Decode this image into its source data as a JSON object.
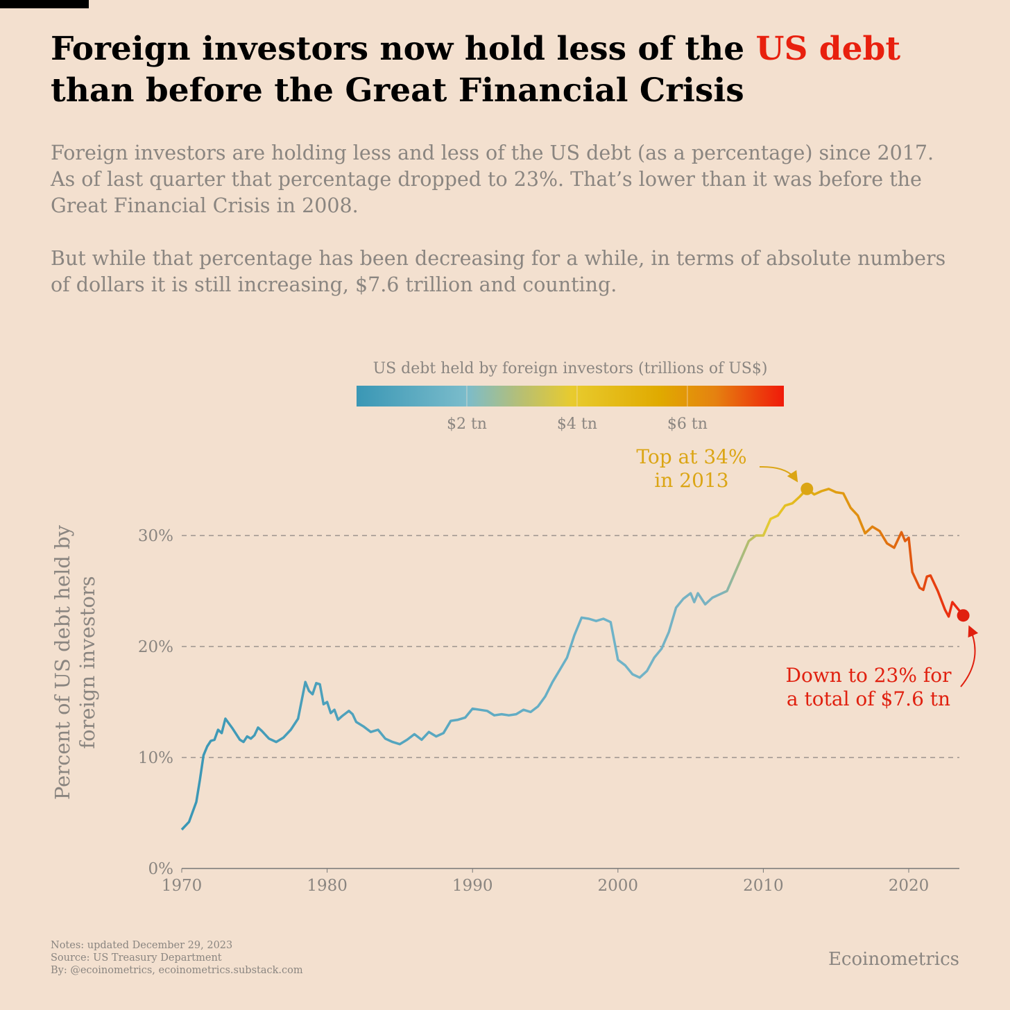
{
  "chart_data": {
    "type": "line",
    "title_parts": [
      "Foreign investors now hold less of the ",
      "US debt",
      "than before the Great Financial Crisis"
    ],
    "title_highlight_color": "#e8200e",
    "subtitle": [
      [
        "Foreign investors are holding less and less of the US debt (as a percentage) since 2017.",
        "As of last quarter that percentage dropped to 23%. That’s lower than it was before the",
        "Great Financial Crisis in 2008."
      ],
      [
        "But while that percentage has been decreasing for a while, in terms of absolute numbers",
        "of dollars it is still increasing, $7.6 trillion and counting."
      ]
    ],
    "colorbar": {
      "title": "US debt held by foreign investors (trillions of US$)",
      "lim": [
        0,
        7.75
      ],
      "ticks": [
        {
          "value": 2,
          "label": "$2 tn"
        },
        {
          "value": 4,
          "label": "$4 tn"
        },
        {
          "value": 6,
          "label": "$6 tn"
        }
      ],
      "stops": [
        {
          "value": 0,
          "color": "#3a97b5"
        },
        {
          "value": 2,
          "color": "#7bbccb"
        },
        {
          "value": 3,
          "color": "#b8bf72"
        },
        {
          "value": 3.9,
          "color": "#e8cb2e"
        },
        {
          "value": 5.5,
          "color": "#e0aa00"
        },
        {
          "value": 6.5,
          "color": "#e58210"
        },
        {
          "value": 7.75,
          "color": "#f01a0a"
        }
      ]
    },
    "ylabel": [
      "Percent of US debt held by",
      "foreign investors"
    ],
    "x": [
      1970,
      1970.5,
      1971,
      1971.25,
      1971.5,
      1971.75,
      1972,
      1972.25,
      1972.5,
      1972.75,
      1973,
      1973.5,
      1974,
      1974.25,
      1974.5,
      1974.75,
      1975,
      1975.25,
      1975.5,
      1976,
      1976.5,
      1977,
      1977.5,
      1978,
      1978.5,
      1978.75,
      1979,
      1979.25,
      1979.5,
      1979.75,
      1980,
      1980.25,
      1980.5,
      1980.75,
      1981,
      1981.5,
      1981.75,
      1982,
      1982.5,
      1983,
      1983.5,
      1984,
      1984.5,
      1985,
      1985.5,
      1986,
      1986.5,
      1987,
      1987.5,
      1988,
      1988.5,
      1989,
      1989.5,
      1990,
      1990.5,
      1991,
      1991.5,
      1992,
      1992.5,
      1993,
      1993.5,
      1994,
      1994.5,
      1995,
      1995.5,
      1996,
      1996.5,
      1997,
      1997.5,
      1998,
      1998.5,
      1999,
      1999.5,
      2000,
      2000.5,
      2001,
      2001.5,
      2002,
      2002.5,
      2003,
      2003.5,
      2004,
      2004.5,
      2005,
      2005.25,
      2005.5,
      2006,
      2006.5,
      2007,
      2007.5,
      2008,
      2008.5,
      2009,
      2009.5,
      2010,
      2010.5,
      2011,
      2011.5,
      2012,
      2012.5,
      2013,
      2013.5,
      2014,
      2014.5,
      2015,
      2015.5,
      2016,
      2016.5,
      2017,
      2017.5,
      2018,
      2018.5,
      2019,
      2019.5,
      2019.75,
      2020,
      2020.25,
      2020.75,
      2021,
      2021.25,
      2021.5,
      2022,
      2022.5,
      2022.75,
      2023,
      2023.5,
      2023.75
    ],
    "series": [
      {
        "values": [
          3.5,
          4.2,
          6,
          8,
          10.2,
          11,
          11.5,
          11.6,
          12.5,
          12.2,
          13.5,
          12.6,
          11.6,
          11.4,
          11.9,
          11.7,
          12,
          12.7,
          12.4,
          11.7,
          11.4,
          11.8,
          12.5,
          13.5,
          16.8,
          16,
          15.7,
          16.7,
          16.6,
          14.8,
          15,
          14,
          14.3,
          13.4,
          13.7,
          14.2,
          13.9,
          13.2,
          12.8,
          12.3,
          12.5,
          11.7,
          11.4,
          11.2,
          11.6,
          12.1,
          11.6,
          12.3,
          11.9,
          12.2,
          13.3,
          13.4,
          13.6,
          14.4,
          14.3,
          14.2,
          13.8,
          13.9,
          13.8,
          13.9,
          14.3,
          14.1,
          14.6,
          15.5,
          16.8,
          17.9,
          19,
          21,
          22.6,
          22.5,
          22.3,
          22.5,
          22.2,
          18.8,
          18.3,
          17.5,
          17.2,
          17.8,
          19,
          19.8,
          21.3,
          23.5,
          24.3,
          24.8,
          24,
          24.8,
          23.8,
          24.4,
          24.7,
          25,
          26.5,
          28,
          29.5,
          30,
          30,
          31.5,
          31.8,
          32.7,
          32.9,
          33.5,
          34.2,
          33.7,
          34,
          34.2,
          33.9,
          33.8,
          32.5,
          31.8,
          30.2,
          30.8,
          30.4,
          29.3,
          28.9,
          30.3,
          29.5,
          29.8,
          26.7,
          25.3,
          25.1,
          26.3,
          26.4,
          25,
          23.3,
          22.7,
          24,
          23.2,
          22.8
        ]
      }
    ],
    "line_gradient": [
      {
        "x": 1970,
        "color": "#3a97b5"
      },
      {
        "x": 2000,
        "color": "#6fb3c8"
      },
      {
        "x": 2007,
        "color": "#7ab2c0"
      },
      {
        "x": 2009,
        "color": "#b5bd6a"
      },
      {
        "x": 2010.5,
        "color": "#e8cb2e"
      },
      {
        "x": 2013,
        "color": "#e0b015"
      },
      {
        "x": 2017,
        "color": "#e08a10"
      },
      {
        "x": 2020,
        "color": "#e05a10"
      },
      {
        "x": 2023.75,
        "color": "#ee2010"
      }
    ],
    "xlim": [
      1970,
      2023.75
    ],
    "xticks": [
      1970,
      1980,
      1990,
      2000,
      2010,
      2020
    ],
    "ylim": [
      0,
      36
    ],
    "yticks": [
      {
        "value": 0,
        "label": "0%"
      },
      {
        "value": 10,
        "label": "10%"
      },
      {
        "value": 20,
        "label": "20%"
      },
      {
        "value": 30,
        "label": "30%"
      }
    ],
    "grid": true,
    "annotations": [
      {
        "lines": [
          "Top at 34%",
          "in 2013"
        ],
        "color": "#dba514"
      },
      {
        "lines": [
          "Down to 23% for",
          "a total of $7.6 tn"
        ],
        "color": "#e0200f"
      }
    ],
    "notes": [
      "Notes: updated December 29, 2023",
      "Source: US Treasury Department",
      "By: @ecoinometrics, ecoinometrics.substack.com"
    ],
    "brand": "Ecoinometrics"
  }
}
